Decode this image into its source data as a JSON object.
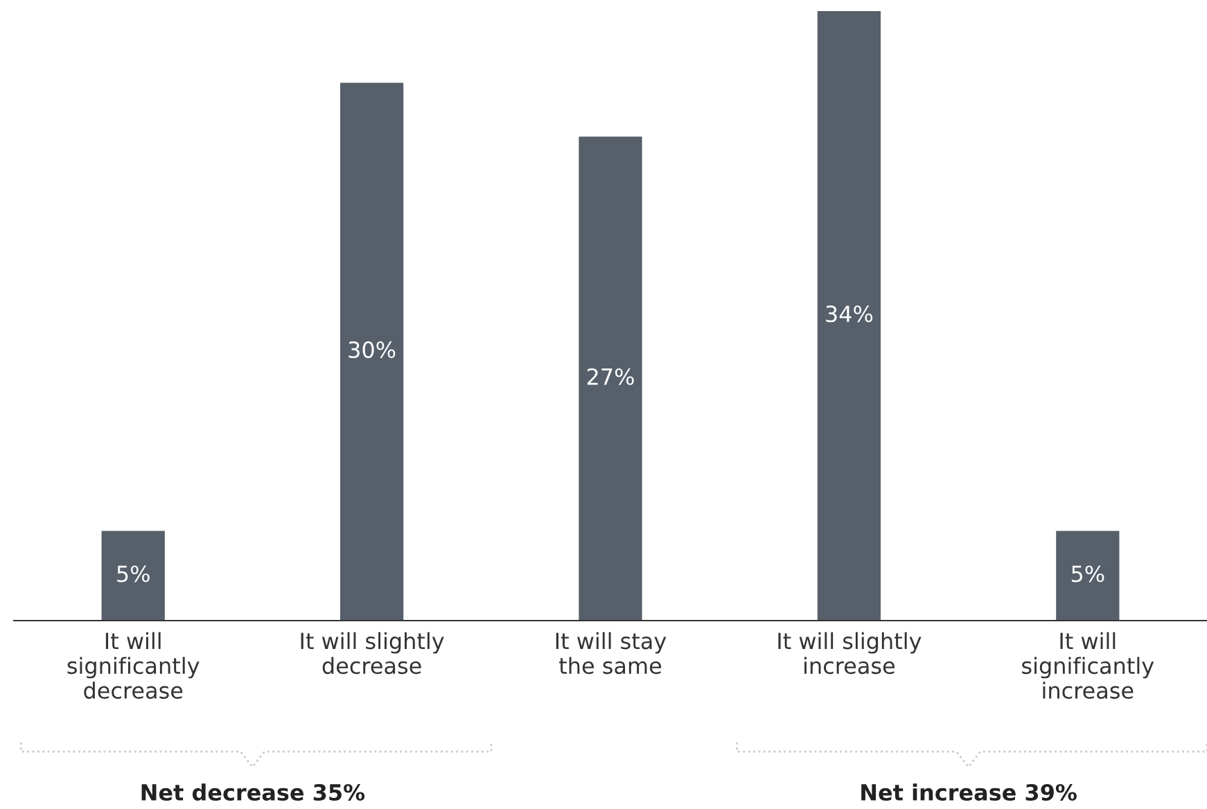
{
  "chart_data": {
    "type": "bar",
    "categories": [
      "It will\nsignificantly\ndecrease",
      "It will slightly\ndecrease",
      "It will stay\nthe same",
      "It will slightly\nincrease",
      "It will\nsignificantly\nincrease"
    ],
    "values": [
      5,
      30,
      27,
      34,
      5
    ],
    "value_labels": [
      "5%",
      "30%",
      "27%",
      "34%",
      "5%"
    ],
    "color": "#565f6a",
    "annotations": [
      "Net decrease 35%",
      "Net increase 39%"
    ],
    "grid": false,
    "legend": false
  }
}
